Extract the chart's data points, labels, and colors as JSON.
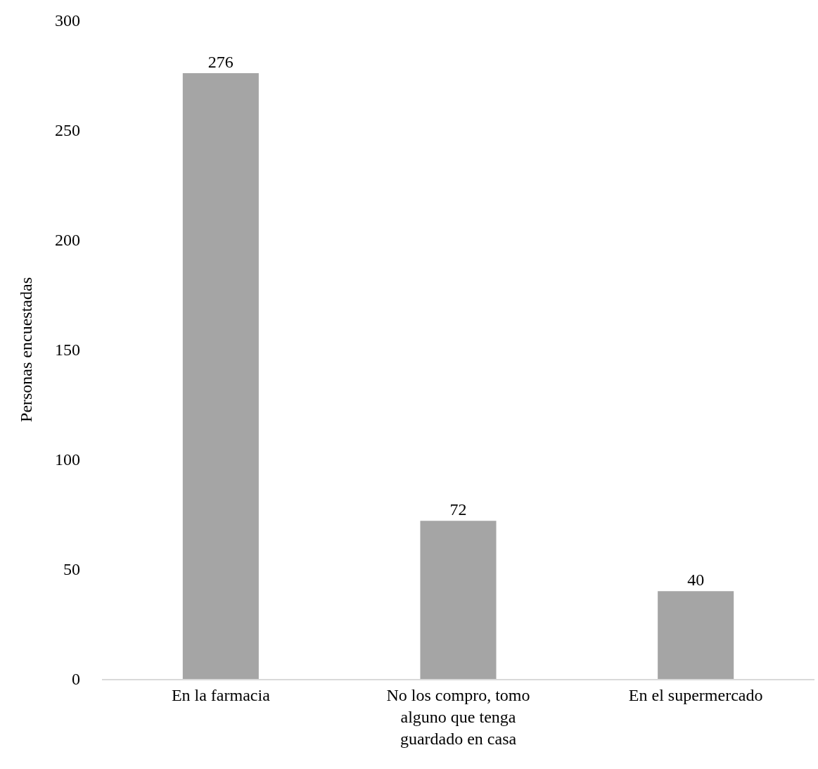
{
  "chart_data": {
    "type": "bar",
    "ylabel": "Personas encuestadas",
    "categories": [
      "En la farmacia",
      "No los compro, tomo alguno que tenga guardado en casa",
      "En el supermercado"
    ],
    "values": [
      276,
      72,
      40
    ],
    "color": "#a5a5a5",
    "ylim": [
      0,
      300
    ],
    "yticks": [
      0,
      50,
      100,
      150,
      200,
      250,
      300
    ],
    "grid": false,
    "data_labels": true
  }
}
